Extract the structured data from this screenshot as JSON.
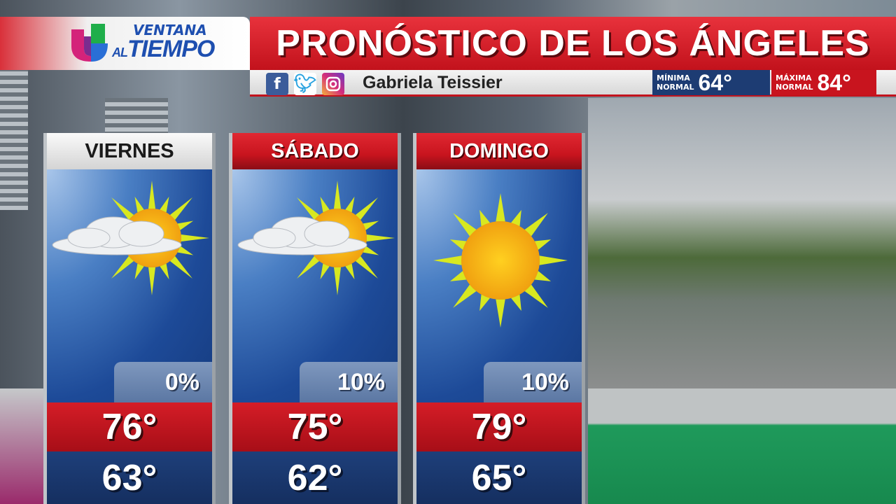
{
  "header": {
    "logo": {
      "line1": "VENTANA",
      "line2_small": "AL",
      "line2": "TIEMPO"
    },
    "title": "PRONÓSTICO DE LOS ÁNGELES",
    "presenter": "Gabriela Teissier",
    "social_icons": [
      "facebook-icon",
      "twitter-icon",
      "instagram-icon"
    ],
    "normals": {
      "min": {
        "label_1": "MÍNIMA",
        "label_2": "NORMAL",
        "value": "64°"
      },
      "max": {
        "label_1": "MÁXIMA",
        "label_2": "NORMAL",
        "value": "84°"
      }
    }
  },
  "forecast": [
    {
      "day": "VIERNES",
      "condition_icon": "partly-cloudy-icon",
      "precip": "0%",
      "high": "76°",
      "low": "63°",
      "header_color": "#e8e8e8"
    },
    {
      "day": "SÁBADO",
      "condition_icon": "partly-cloudy-icon",
      "precip": "10%",
      "high": "75°",
      "low": "62°",
      "header_color": "#c8141e"
    },
    {
      "day": "DOMINGO",
      "condition_icon": "sunny-icon",
      "precip": "10%",
      "high": "79°",
      "low": "65°",
      "header_color": "#c8141e"
    }
  ],
  "colors": {
    "brand_red": "#c8141e",
    "navy": "#1d3c73",
    "brand_blue": "#1e4fb0"
  }
}
